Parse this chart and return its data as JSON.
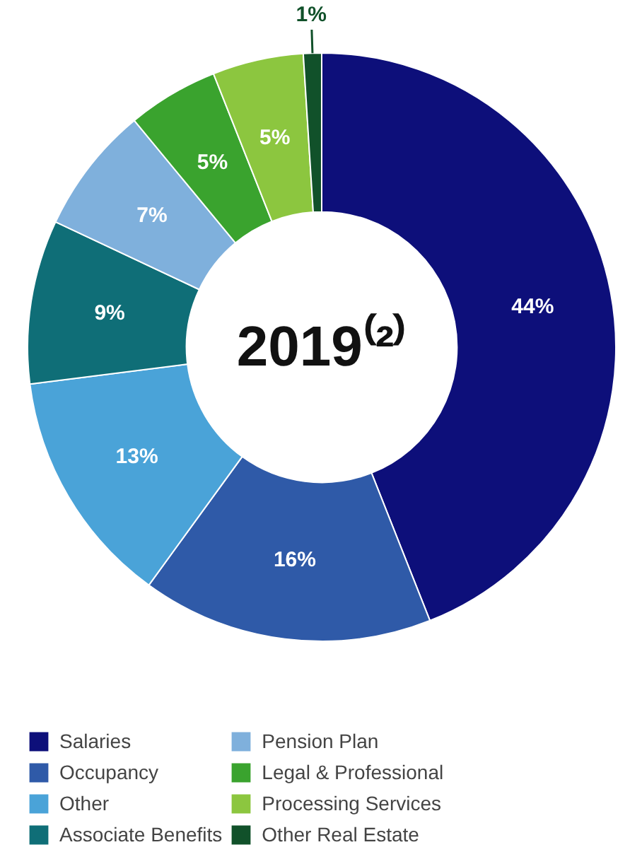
{
  "chart_data": {
    "type": "donut",
    "title": "2019⁽²⁾",
    "categories": [
      "Salaries",
      "Occupancy",
      "Other",
      "Associate Benefits",
      "Pension Plan",
      "Legal & Professional",
      "Processing Services",
      "Other Real Estate"
    ],
    "values": [
      44,
      16,
      13,
      9,
      7,
      5,
      5,
      1
    ],
    "colors": [
      "#0d0f7a",
      "#2f5aa8",
      "#4aa3d8",
      "#0f6e77",
      "#7fb0dc",
      "#3aa32e",
      "#8cc63f",
      "#11512a"
    ],
    "value_labels": [
      "44%",
      "16%",
      "13%",
      "9%",
      "7%",
      "5%",
      "5%",
      "1%"
    ],
    "legend": "bottom"
  }
}
